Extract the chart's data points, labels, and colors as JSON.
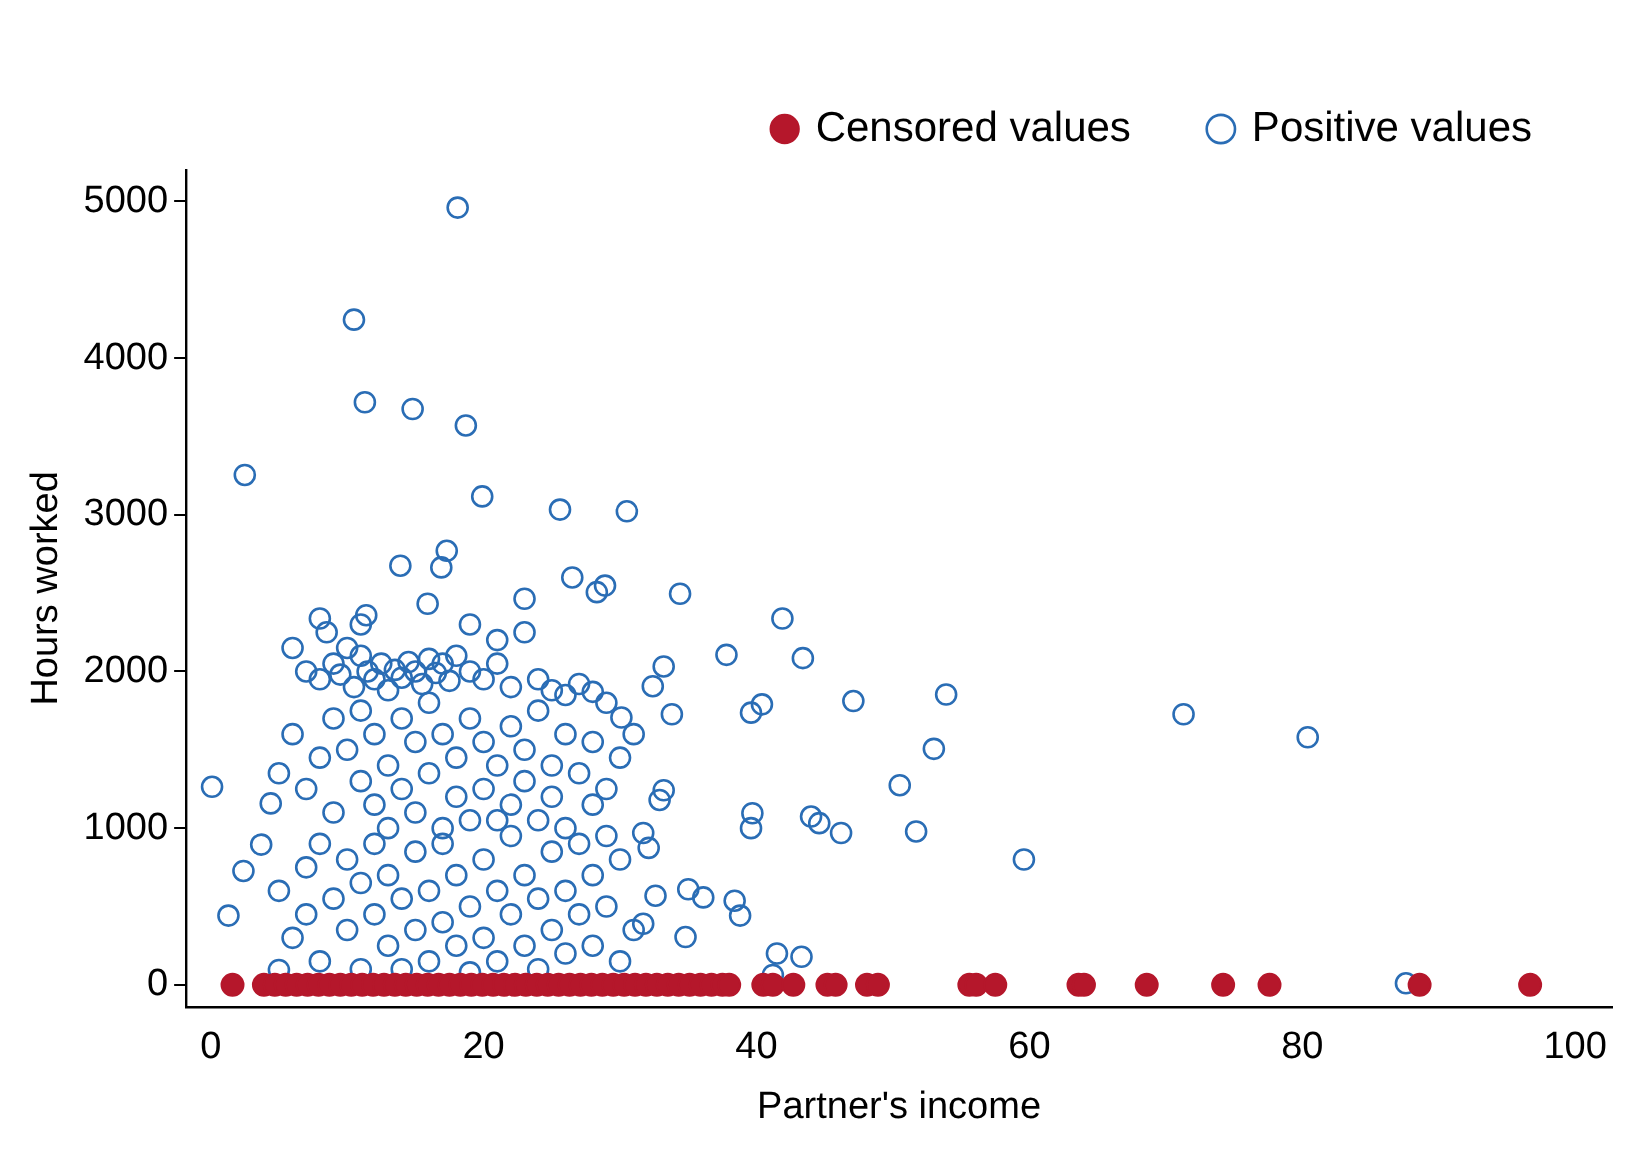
{
  "chart_data": {
    "type": "scatter",
    "xlabel": "Partner's income",
    "ylabel": "Hours worked",
    "xlim": [
      -1.8,
      102.7
    ],
    "ylim": [
      -140,
      5200
    ],
    "xticks": [
      0,
      20,
      40,
      60,
      80,
      100
    ],
    "yticks": [
      0,
      1000,
      2000,
      3000,
      4000,
      5000
    ],
    "grid": false,
    "legend": "top right",
    "marker": "circle",
    "series": [
      {
        "name": "Censored values",
        "color": "#b5172b",
        "x": [
          1.6,
          3.9,
          4.7,
          5.5,
          6.3,
          7.1,
          7.9,
          8.7,
          9.5,
          10.3,
          11.1,
          11.9,
          12.7,
          13.5,
          14.3,
          15.1,
          15.9,
          16.7,
          17.5,
          18.3,
          19.1,
          19.9,
          20.7,
          21.5,
          22.3,
          23.1,
          23.9,
          24.7,
          25.5,
          26.3,
          27.1,
          27.9,
          28.7,
          29.5,
          30.3,
          31.1,
          31.9,
          32.7,
          33.5,
          34.3,
          35.1,
          35.9,
          36.7,
          37.5,
          38.0,
          40.5,
          41.2,
          42.7,
          45.2,
          45.8,
          48.1,
          48.9,
          55.6,
          56.1,
          57.5,
          63.6,
          64.0,
          68.6,
          74.2,
          77.6,
          88.6,
          96.7
        ],
        "values": [
          0,
          0,
          0,
          0,
          0,
          0,
          0,
          0,
          0,
          0,
          0,
          0,
          0,
          0,
          0,
          0,
          0,
          0,
          0,
          0,
          0,
          0,
          0,
          0,
          0,
          0,
          0,
          0,
          0,
          0,
          0,
          0,
          0,
          0,
          0,
          0,
          0,
          0,
          0,
          0,
          0,
          0,
          0,
          0,
          0,
          0,
          0,
          0,
          0,
          0,
          0,
          0,
          0,
          0,
          0,
          0,
          0,
          0,
          0,
          0,
          0,
          0
        ]
      },
      {
        "name": "Positive values",
        "color": "#2a6db5",
        "x": [
          18.1,
          10.5,
          11.3,
          14.8,
          18.7,
          2.5,
          19.9,
          25.6,
          30.5,
          17.3,
          16.9,
          13.9,
          26.5,
          28.9,
          28.3,
          34.4,
          15.9,
          23,
          41.9,
          8,
          11.4,
          43.4,
          37.8,
          71.3,
          80.4,
          53.9,
          47.1,
          40.4,
          39.6,
          33.8,
          53,
          50.5,
          39.7,
          39.6,
          44,
          44.6,
          46.2,
          51.7,
          59.6,
          87.6,
          0.1,
          1.3,
          2.4,
          3.7,
          5,
          4.4,
          35,
          36.1,
          38.4,
          38.8,
          41.2,
          43.3,
          41.5,
          34.8,
          31.7,
          32.6,
          32.1,
          31.7,
          32.9,
          33.2,
          30.1,
          33.2,
          32.4,
          7,
          8,
          9,
          9.5,
          10,
          10.5,
          11,
          11.5,
          12,
          12.5,
          13,
          13.5,
          14,
          14.5,
          15,
          15.5,
          16,
          16.5,
          17,
          17.5,
          18,
          19,
          20,
          21,
          22,
          24,
          25,
          26,
          27,
          28,
          6,
          8.5,
          11,
          19,
          21,
          23,
          5,
          6,
          7,
          8,
          9,
          9,
          10,
          11,
          11,
          12,
          12,
          13,
          13,
          14,
          14,
          15,
          15,
          16,
          16,
          17,
          17,
          18,
          18,
          19,
          19,
          20,
          20,
          21,
          21,
          22,
          22,
          23,
          23,
          24,
          24,
          25,
          25,
          26,
          26,
          27,
          28,
          28,
          29,
          29,
          30,
          31,
          5,
          6,
          7,
          7,
          8,
          8,
          9,
          10,
          10,
          11,
          11,
          12,
          12,
          13,
          13,
          14,
          14,
          15,
          15,
          16,
          16,
          17,
          17,
          18,
          18,
          19,
          19,
          20,
          20,
          21,
          21,
          22,
          22,
          23,
          23,
          24,
          24,
          25,
          25,
          26,
          26,
          27,
          27,
          28,
          28,
          29,
          30,
          30,
          31,
          29
        ],
        "values": [
          4960,
          4245,
          3718,
          3675,
          3570,
          3254,
          3117,
          3033,
          3022,
          2770,
          2664,
          2675,
          2600,
          2548,
          2506,
          2496,
          2432,
          2464,
          2338,
          2338,
          2359,
          2085,
          2106,
          1727,
          1580,
          1853,
          1811,
          1790,
          1737,
          1727,
          1506,
          1274,
          1095,
          1000,
          1074,
          1032,
          969,
          979,
          800,
          10,
          1264,
          442,
          727,
          895,
          95,
          1158,
          610,
          558,
          537,
          442,
          63,
          179,
          200,
          305,
          390,
          569,
          874,
          969,
          1180,
          1242,
          1706,
          2032,
          1906,
          2000,
          1950,
          2050,
          1980,
          2150,
          1900,
          2100,
          2000,
          1950,
          2050,
          1880,
          2010,
          1960,
          2060,
          2000,
          1920,
          2080,
          1990,
          2050,
          1940,
          2100,
          2000,
          1950,
          2050,
          1900,
          1950,
          1880,
          1850,
          1920,
          1870,
          2150,
          2250,
          2300,
          2300,
          2200,
          2250,
          1350,
          1600,
          1250,
          1450,
          1700,
          1100,
          1500,
          1300,
          1750,
          1600,
          1150,
          1400,
          1000,
          1700,
          1250,
          1550,
          1100,
          1800,
          1350,
          1600,
          1000,
          1450,
          1200,
          1700,
          1050,
          1550,
          1250,
          1400,
          1050,
          1650,
          1150,
          1500,
          1300,
          1750,
          1050,
          1400,
          1200,
          1600,
          1000,
          1350,
          1550,
          1150,
          1800,
          1250,
          1450,
          1600,
          600,
          300,
          750,
          450,
          150,
          900,
          550,
          350,
          800,
          100,
          650,
          450,
          900,
          250,
          700,
          550,
          100,
          850,
          350,
          600,
          150,
          400,
          900,
          250,
          700,
          500,
          80,
          800,
          300,
          600,
          150,
          450,
          950,
          250,
          700,
          550,
          100,
          850,
          350,
          600,
          200,
          450,
          900,
          250,
          700,
          500,
          150,
          800,
          350,
          950
        ]
      }
    ]
  }
}
